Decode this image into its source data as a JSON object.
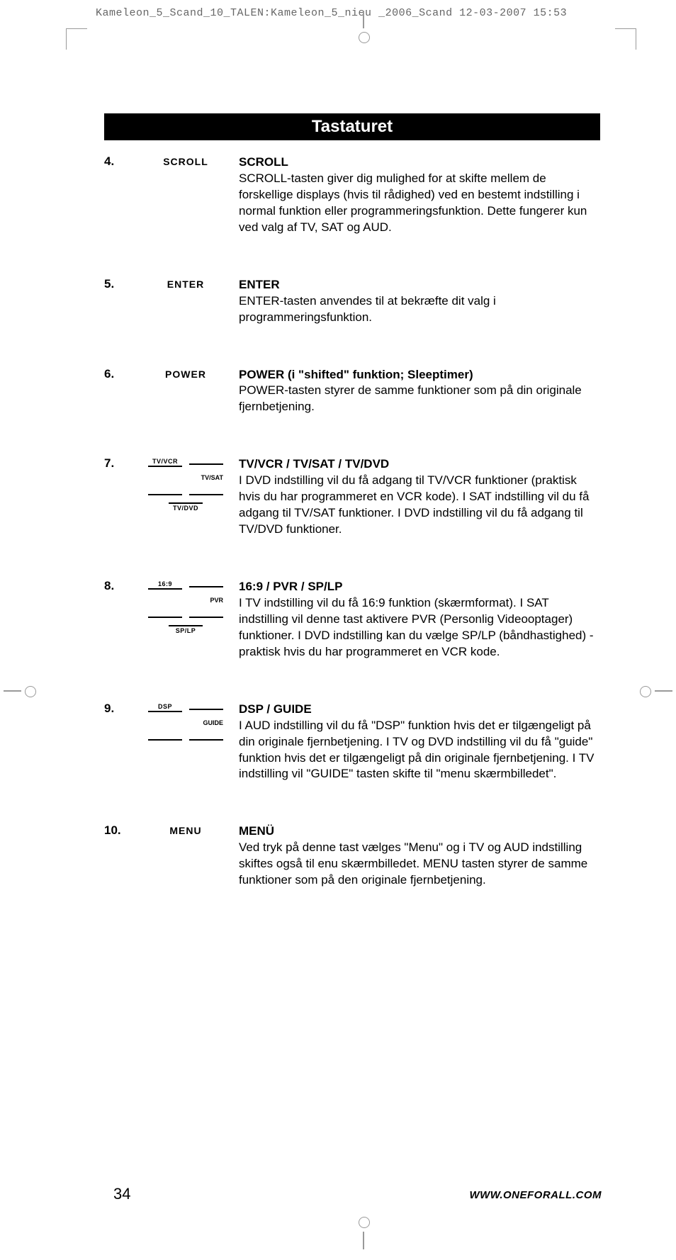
{
  "print_header": "Kameleon_5_Scand_10_TALEN:Kameleon_5_nieu _2006_Scand  12-03-2007  15:53",
  "page_title": "Tastaturet",
  "page_number": "34",
  "website": "WWW.ONEFORALL.COM",
  "items": [
    {
      "num": "4.",
      "label_type": "single",
      "label": "SCROLL",
      "heading": "SCROLL",
      "body": "SCROLL-tasten giver dig mulighed for at skifte mellem de forskellige displays (hvis til rådighed) ved en bestemt indstilling i normal funktion eller programmeringsfunktion. Dette fungerer kun ved valg af TV, SAT og AUD."
    },
    {
      "num": "5.",
      "label_type": "single",
      "label": "ENTER",
      "heading": "ENTER",
      "body": "ENTER-tasten anvendes til at bekræfte dit valg i programmeringsfunktion."
    },
    {
      "num": "6.",
      "label_type": "single",
      "label": "POWER",
      "heading": "POWER (i \"shifted\" funktion; Sleeptimer)",
      "body": "POWER-tasten styrer de samme funktioner som på din originale fjernbetjening."
    },
    {
      "num": "7.",
      "label_type": "grid3",
      "labels": [
        "TV/VCR",
        "TV/SAT",
        "TV/DVD"
      ],
      "heading": "TV/VCR / TV/SAT / TV/DVD",
      "body": "I DVD indstilling vil du få adgang til TV/VCR funktioner (praktisk hvis du har programmeret en VCR kode). I SAT indstilling vil du få adgang til TV/SAT funktioner. I DVD indstilling vil du få adgang til TV/DVD funktioner."
    },
    {
      "num": "8.",
      "label_type": "grid3",
      "labels": [
        "16:9",
        "PVR",
        "SP/LP"
      ],
      "heading": "16:9 / PVR / SP/LP",
      "body": "I TV indstilling vil du få 16:9 funktion (skærmformat). I SAT indstilling vil denne tast aktivere PVR (Personlig Videooptager) funktioner. I DVD indstilling kan du vælge SP/LP (båndhastighed) - praktisk hvis du har programmeret en VCR kode."
    },
    {
      "num": "9.",
      "label_type": "grid2",
      "labels": [
        "DSP",
        "GUIDE"
      ],
      "heading": "DSP / GUIDE",
      "body": "I AUD indstilling vil du få \"DSP\" funktion hvis det er tilgængeligt på din originale fjernbetjening. I TV og DVD indstilling vil du få \"guide\" funktion hvis det er tilgængeligt på din originale fjernbetjening. I TV indstilling vil \"GUIDE\" tasten skifte til \"menu skærmbilledet\"."
    },
    {
      "num": "10.",
      "label_type": "single",
      "label": "MENU",
      "heading": "MENÜ",
      "body": "Ved tryk på denne tast vælges \"Menu\" og i TV og AUD indstilling skiftes også til enu skærmbilledet. MENU tasten styrer de samme funktioner som på den originale fjernbetjening."
    }
  ]
}
